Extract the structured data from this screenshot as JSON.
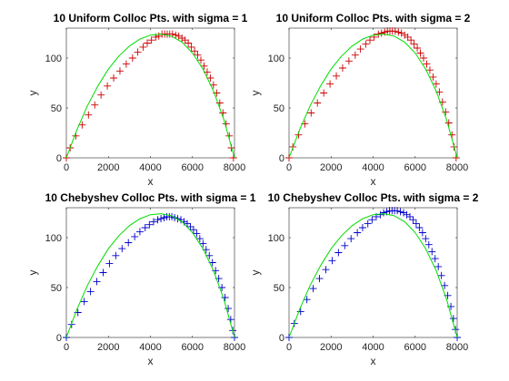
{
  "chart_data": [
    {
      "type": "scatter",
      "title": "10 Uniform Colloc Pts. with sigma = 1",
      "xlabel": "x",
      "ylabel": "y",
      "xlim": [
        0,
        8000
      ],
      "ylim": [
        0,
        130
      ],
      "xticks": [
        "0",
        "2000",
        "4000",
        "6000",
        "8000"
      ],
      "yticks": [
        "0",
        "50",
        "100"
      ],
      "grid": false,
      "series": [
        {
          "kind": "marker",
          "marker": "plus",
          "color": "#cc0000",
          "x": [
            0,
            180,
            450,
            750,
            1050,
            1350,
            1650,
            1950,
            2250,
            2550,
            2850,
            3150,
            3400,
            3650,
            3850,
            4050,
            4250,
            4400,
            4550,
            4680,
            4800,
            4920,
            5050,
            5200,
            5350,
            5500,
            5650,
            5800,
            5950,
            6100,
            6250,
            6400,
            6550,
            6700,
            6850,
            7000,
            7150,
            7300,
            7450,
            7600,
            7750,
            7850,
            7950
          ],
          "y": [
            0,
            10,
            22,
            33,
            43,
            53,
            63,
            72,
            80,
            87,
            94,
            100,
            106,
            111,
            115,
            118,
            121,
            122,
            124,
            124,
            124,
            124,
            124,
            123,
            122,
            120,
            118,
            115,
            111,
            107,
            103,
            98,
            92,
            86,
            80,
            73,
            65,
            55,
            45,
            34,
            22,
            10,
            0
          ]
        },
        {
          "kind": "line",
          "color": "#00dd00",
          "x": [
            0,
            500,
            1000,
            1500,
            2000,
            2500,
            3000,
            3500,
            4000,
            4500,
            5000,
            5500,
            6000,
            6500,
            7000,
            7500,
            8000
          ],
          "y": [
            0,
            28,
            52,
            72,
            89,
            102,
            112,
            119,
            123,
            124,
            122,
            116,
            105,
            89,
            67,
            38,
            0
          ]
        }
      ]
    },
    {
      "type": "scatter",
      "title": "10 Uniform Colloc Pts. with sigma = 2",
      "xlabel": "x",
      "ylabel": "y",
      "xlim": [
        0,
        8000
      ],
      "ylim": [
        0,
        130
      ],
      "xticks": [
        "0",
        "2000",
        "4000",
        "6000",
        "8000"
      ],
      "yticks": [
        "0",
        "50",
        "100"
      ],
      "grid": false,
      "series": [
        {
          "kind": "marker",
          "marker": "plus",
          "color": "#cc0000",
          "x": [
            0,
            180,
            450,
            750,
            1050,
            1350,
            1650,
            1950,
            2250,
            2550,
            2850,
            3150,
            3400,
            3650,
            3850,
            4050,
            4250,
            4400,
            4550,
            4680,
            4800,
            4920,
            5050,
            5200,
            5350,
            5500,
            5650,
            5800,
            5950,
            6100,
            6250,
            6400,
            6550,
            6700,
            6850,
            7000,
            7150,
            7300,
            7450,
            7600,
            7750,
            7850,
            7950
          ],
          "y": [
            0,
            11,
            23,
            34,
            45,
            55,
            65,
            74,
            82,
            90,
            97,
            103,
            109,
            114,
            118,
            121,
            124,
            125,
            126,
            127,
            127,
            127,
            127,
            126,
            125,
            123,
            121,
            118,
            114,
            110,
            105,
            100,
            94,
            88,
            81,
            74,
            66,
            56,
            46,
            35,
            23,
            11,
            0
          ]
        },
        {
          "kind": "line",
          "color": "#00dd00",
          "x": [
            0,
            500,
            1000,
            1500,
            2000,
            2500,
            3000,
            3500,
            4000,
            4500,
            5000,
            5500,
            6000,
            6500,
            7000,
            7500,
            8000
          ],
          "y": [
            0,
            28,
            52,
            72,
            89,
            102,
            112,
            119,
            123,
            124,
            122,
            116,
            105,
            89,
            67,
            38,
            0
          ]
        }
      ]
    },
    {
      "type": "scatter",
      "title": "10 Chebyshev Colloc Pts. with sigma = 1",
      "xlabel": "x",
      "ylabel": "y",
      "xlim": [
        0,
        8000
      ],
      "ylim": [
        0,
        130
      ],
      "xticks": [
        "0",
        "2000",
        "4000",
        "6000",
        "8000"
      ],
      "yticks": [
        "0",
        "50",
        "100"
      ],
      "grid": false,
      "series": [
        {
          "kind": "marker",
          "marker": "plus",
          "color": "#0000cc",
          "x": [
            0,
            250,
            550,
            850,
            1150,
            1450,
            1750,
            2050,
            2350,
            2650,
            2950,
            3250,
            3500,
            3750,
            3950,
            4150,
            4350,
            4500,
            4650,
            4780,
            4900,
            5020,
            5150,
            5300,
            5450,
            5600,
            5750,
            5900,
            6050,
            6200,
            6350,
            6500,
            6650,
            6800,
            6950,
            7100,
            7250,
            7400,
            7550,
            7700,
            7820,
            7920,
            8000
          ],
          "y": [
            0,
            13,
            25,
            36,
            46,
            56,
            65,
            74,
            82,
            89,
            95,
            101,
            106,
            110,
            113,
            116,
            118,
            119,
            120,
            121,
            121,
            121,
            120,
            119,
            118,
            116,
            114,
            111,
            108,
            104,
            99,
            94,
            88,
            82,
            75,
            67,
            59,
            50,
            40,
            29,
            18,
            7,
            0
          ]
        },
        {
          "kind": "line",
          "color": "#00dd00",
          "x": [
            0,
            500,
            1000,
            1500,
            2000,
            2500,
            3000,
            3500,
            4000,
            4500,
            5000,
            5500,
            6000,
            6500,
            7000,
            7500,
            8000
          ],
          "y": [
            0,
            28,
            52,
            72,
            89,
            102,
            112,
            119,
            123,
            124,
            122,
            116,
            105,
            89,
            67,
            38,
            0
          ]
        }
      ]
    },
    {
      "type": "scatter",
      "title": "10 Chebyshev Colloc Pts. with sigma = 2",
      "xlabel": "x",
      "ylabel": "y",
      "xlim": [
        0,
        8000
      ],
      "ylim": [
        0,
        130
      ],
      "xticks": [
        "0",
        "2000",
        "4000",
        "6000",
        "8000"
      ],
      "yticks": [
        "0",
        "50",
        "100"
      ],
      "grid": false,
      "series": [
        {
          "kind": "marker",
          "marker": "plus",
          "color": "#0000cc",
          "x": [
            0,
            250,
            550,
            850,
            1150,
            1450,
            1750,
            2050,
            2350,
            2650,
            2950,
            3250,
            3500,
            3750,
            3950,
            4150,
            4350,
            4500,
            4650,
            4780,
            4900,
            5020,
            5150,
            5300,
            5450,
            5600,
            5750,
            5900,
            6050,
            6200,
            6350,
            6500,
            6650,
            6800,
            6950,
            7100,
            7250,
            7400,
            7550,
            7700,
            7820,
            7920,
            8000
          ],
          "y": [
            0,
            14,
            26,
            38,
            49,
            59,
            68,
            77,
            85,
            92,
            99,
            105,
            110,
            114,
            118,
            121,
            123,
            125,
            126,
            127,
            127,
            127,
            127,
            126,
            125,
            123,
            121,
            118,
            114,
            110,
            105,
            99,
            93,
            86,
            79,
            71,
            62,
            52,
            42,
            31,
            19,
            8,
            0
          ]
        },
        {
          "kind": "line",
          "color": "#00dd00",
          "x": [
            0,
            500,
            1000,
            1500,
            2000,
            2500,
            3000,
            3500,
            4000,
            4500,
            5000,
            5500,
            6000,
            6500,
            7000,
            7500,
            8000
          ],
          "y": [
            0,
            28,
            52,
            72,
            89,
            102,
            112,
            119,
            123,
            124,
            122,
            116,
            105,
            89,
            67,
            38,
            0
          ]
        }
      ]
    }
  ]
}
